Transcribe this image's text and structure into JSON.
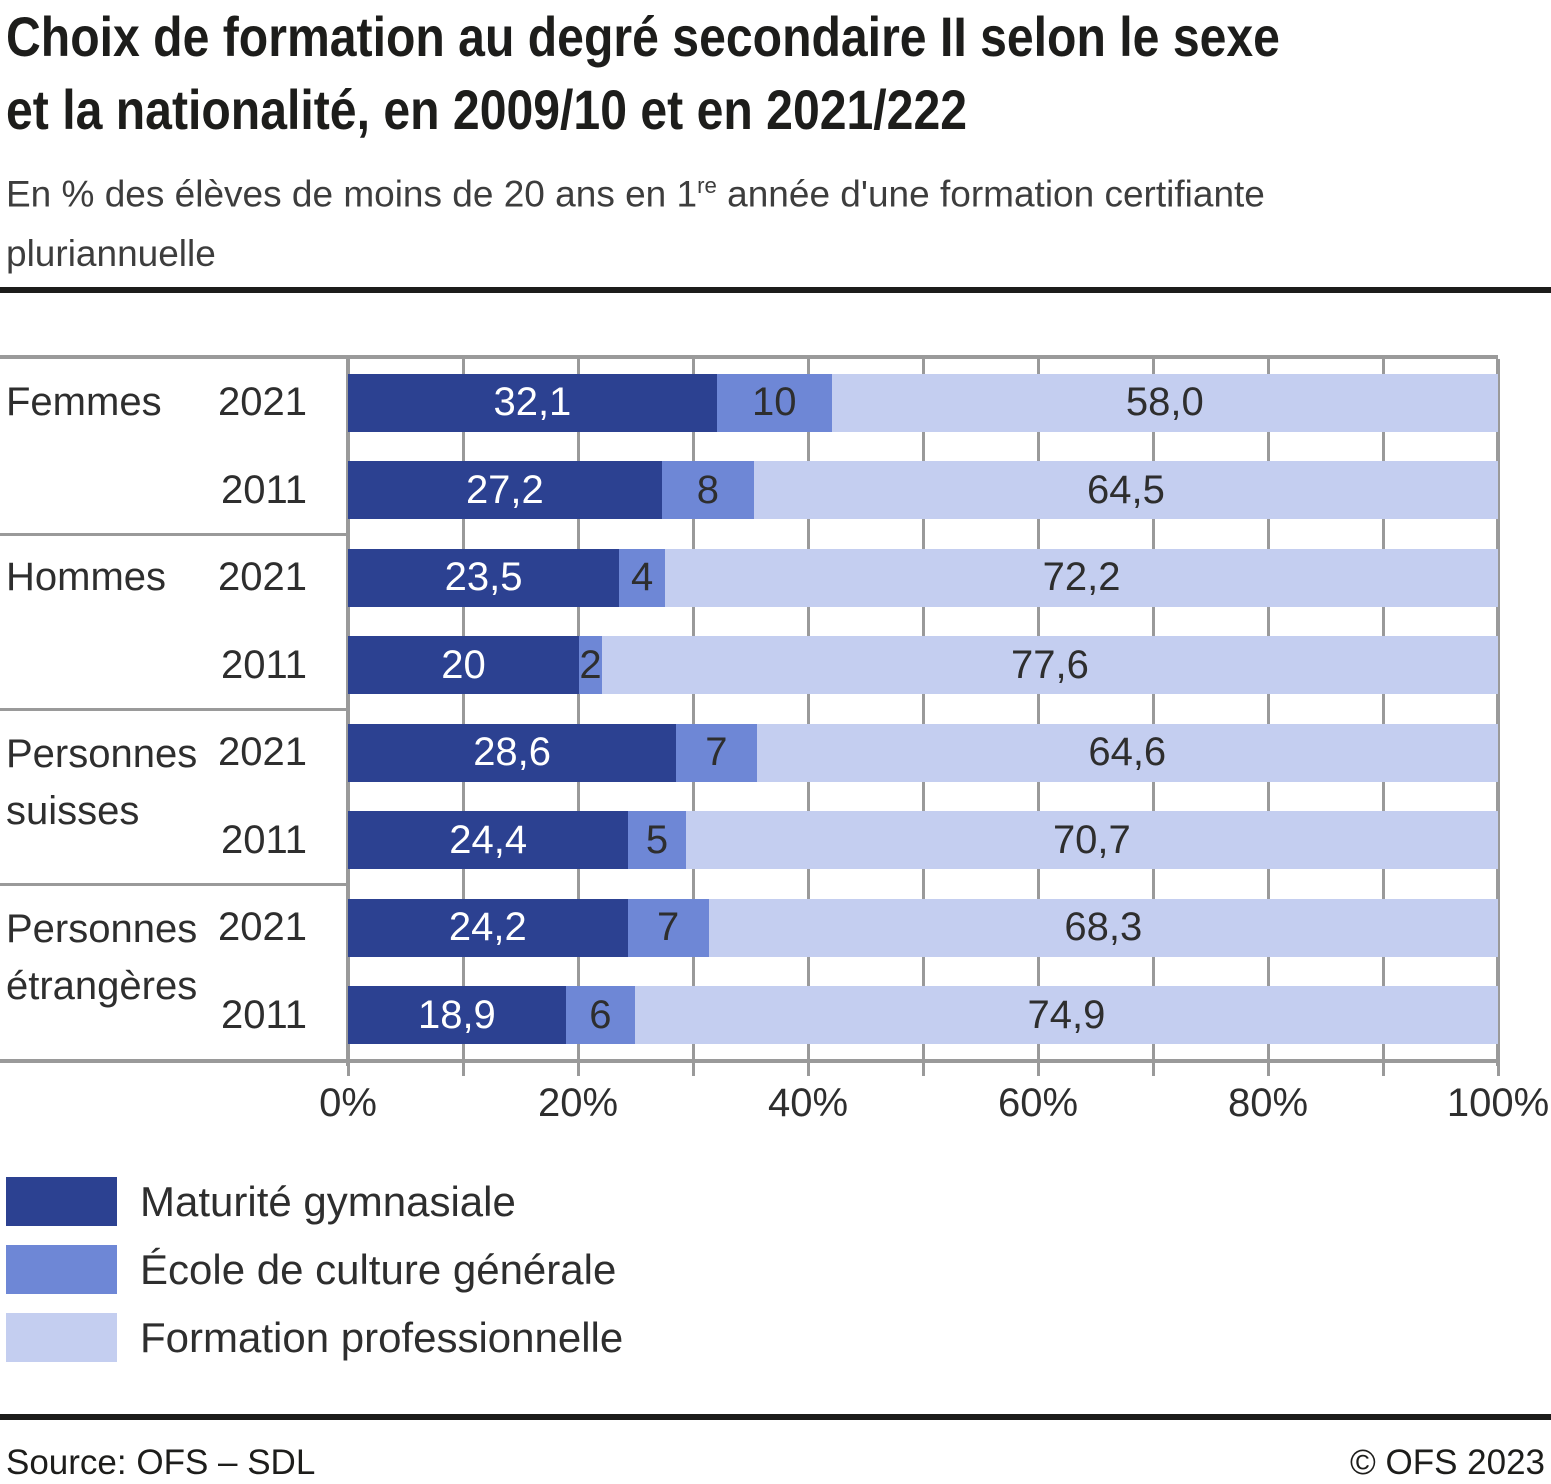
{
  "header": {
    "title_lines": [
      "Choix de formation au degré secondaire II selon le sexe",
      "et la nationalité, en 2009/10 et en 2021/222"
    ],
    "subtitle_prefix": "En % des élèves de moins de 20 ans en 1",
    "subtitle_sup": "re",
    "subtitle_suffix": " année d'une formation certifiante",
    "subtitle_line2": "pluriannuelle"
  },
  "chart_data": {
    "type": "bar",
    "orientation": "horizontal",
    "stacked": true,
    "unit": "%",
    "x_axis": {
      "range": [
        0,
        100
      ],
      "tick_labels": [
        "0%",
        "20%",
        "40%",
        "60%",
        "80%",
        "100%"
      ],
      "minor_tick_step": 10,
      "grid": true
    },
    "series": [
      "Maturité gymnasiale",
      "École de culture générale",
      "Formation professionnelle"
    ],
    "series_colors": [
      "#2c4191",
      "#6e87d6",
      "#c4cef0"
    ],
    "value_label_colors": [
      "#ffffff",
      "#2e2e2e",
      "#2e2e2e"
    ],
    "groups": [
      {
        "label": "Femmes",
        "label_lines": [
          "Femmes"
        ],
        "rows": [
          {
            "year": "2021",
            "values": [
              32.1,
              10,
              58.0
            ],
            "value_labels": [
              "32,1",
              "10",
              "58,0"
            ]
          },
          {
            "year": "2011",
            "values": [
              27.2,
              8,
              64.5
            ],
            "value_labels": [
              "27,2",
              "8",
              "64,5"
            ]
          }
        ]
      },
      {
        "label": "Hommes",
        "label_lines": [
          "Hommes"
        ],
        "rows": [
          {
            "year": "2021",
            "values": [
              23.5,
              4,
              72.2
            ],
            "value_labels": [
              "23,5",
              "4",
              "72,2"
            ]
          },
          {
            "year": "2011",
            "values": [
              20,
              2,
              77.6
            ],
            "value_labels": [
              "20",
              "2",
              "77,6"
            ]
          }
        ]
      },
      {
        "label": "Personnes suisses",
        "label_lines": [
          "Personnes",
          "suisses"
        ],
        "rows": [
          {
            "year": "2021",
            "values": [
              28.6,
              7,
              64.6
            ],
            "value_labels": [
              "28,6",
              "7",
              "64,6"
            ]
          },
          {
            "year": "2011",
            "values": [
              24.4,
              5,
              70.7
            ],
            "value_labels": [
              "24,4",
              "5",
              "70,7"
            ]
          }
        ]
      },
      {
        "label": "Personnes étrangères",
        "label_lines": [
          "Personnes",
          "étrangères"
        ],
        "rows": [
          {
            "year": "2021",
            "values": [
              24.2,
              7,
              68.3
            ],
            "value_labels": [
              "24,2",
              "7",
              "68,3"
            ]
          },
          {
            "year": "2011",
            "values": [
              18.9,
              6,
              74.9
            ],
            "value_labels": [
              "18,9",
              "6",
              "74,9"
            ]
          }
        ]
      }
    ]
  },
  "layout_colors": {
    "grid": "#9a9a9a",
    "rule": "#1d1d1b",
    "text": "#2e2e2e"
  },
  "footer": {
    "source": "Source: OFS – SDL",
    "copyright": "© OFS 2023"
  }
}
